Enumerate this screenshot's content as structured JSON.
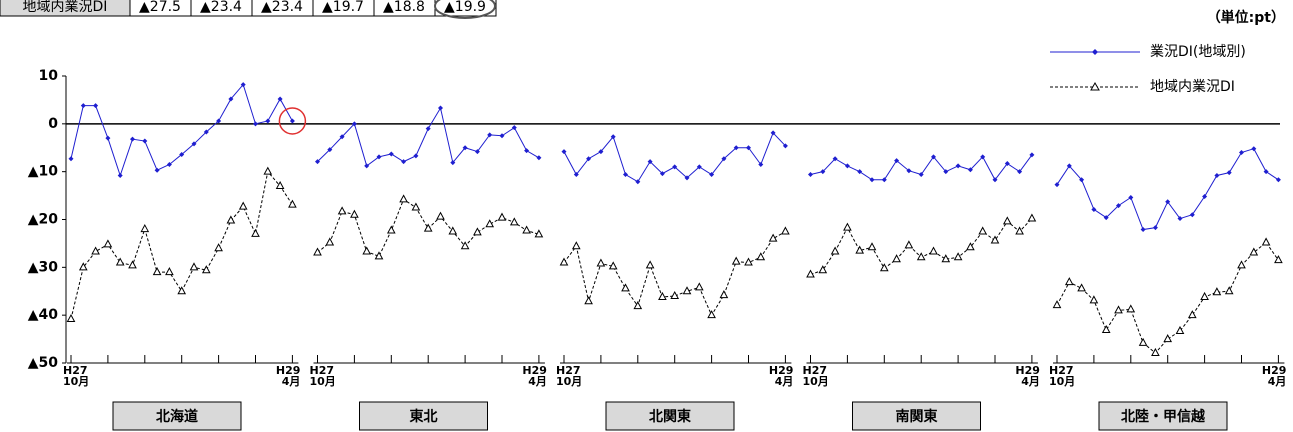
{
  "top_table": {
    "header": "地域内業況DI",
    "values": [
      "▲27.5",
      "▲23.4",
      "▲23.4",
      "▲19.7",
      "▲18.8",
      "▲19.9"
    ]
  },
  "chart_data": {
    "type": "line",
    "unit": "（単位:pt）",
    "ylim": [
      -50,
      10
    ],
    "yticks": [
      10,
      0,
      {
        "value": -10,
        "label": "▲10"
      },
      {
        "value": -20,
        "label": "▲20"
      },
      {
        "value": -30,
        "label": "▲30"
      },
      {
        "value": -40,
        "label": "▲40"
      },
      {
        "value": -50,
        "label": "▲50"
      }
    ],
    "categories": [
      "H27\n10月",
      null,
      null,
      null,
      null,
      null,
      null,
      null,
      null,
      null,
      null,
      null,
      null,
      null,
      null,
      null,
      null,
      null,
      "H29\n4月"
    ],
    "series": [
      {
        "name": "業況DI(地域別)",
        "color": "#1f1fd0"
      },
      {
        "name": "地域内業況DI",
        "color": "#000000"
      }
    ],
    "panels": [
      {
        "label": "北海道",
        "values": [
          [
            -7.3,
            3.8,
            3.8,
            -3,
            -10.8,
            -3.2,
            -3.6,
            -9.7,
            -8.5,
            -6.4,
            -4.2,
            -1.7,
            0.6,
            5.2,
            8.2,
            0,
            0.6,
            5.2,
            0.6
          ],
          [
            -40.8,
            -30,
            -26.7,
            -25.2,
            -29,
            -29.6,
            -22,
            -31,
            -31,
            -35,
            -30,
            -30.6,
            -26,
            -20.2,
            -17.3,
            -23,
            -10,
            -13,
            -16.9
          ]
        ]
      },
      {
        "label": "東北",
        "values": [
          [
            -7.9,
            -5.4,
            -2.7,
            0,
            -8.8,
            -6.9,
            -6.3,
            -7.9,
            -6.7,
            -1,
            3.3,
            -8.1,
            -5,
            -5.8,
            -2.3,
            -2.5,
            -0.8,
            -5.6,
            -7.1
          ],
          [
            -26.9,
            -24.8,
            -18.3,
            -19,
            -26.7,
            -27.7,
            -22.3,
            -15.8,
            -17.5,
            -21.9,
            -19.4,
            -22.5,
            -25.6,
            -22.7,
            -21,
            -19.6,
            -20.6,
            -22.3,
            -23.1
          ]
        ]
      },
      {
        "label": "北関東",
        "values": [
          [
            -5.8,
            -10.6,
            -7.3,
            -5.8,
            -2.7,
            -10.6,
            -12.1,
            -7.9,
            -10.4,
            -9,
            -11.3,
            -9,
            -10.6,
            -7.3,
            -5,
            -5,
            -8.5,
            -1.9,
            -4.6
          ],
          [
            -29,
            -25.6,
            -37.1,
            -29.2,
            -29.8,
            -34.4,
            -38.1,
            -29.6,
            -36.2,
            -36,
            -35,
            -34.2,
            -40,
            -35.8,
            -28.8,
            -29,
            -27.9,
            -24,
            -22.5
          ]
        ]
      },
      {
        "label": "南関東",
        "values": [
          [
            -10.6,
            -10,
            -7.3,
            -8.8,
            -10,
            -11.7,
            -11.7,
            -7.7,
            -9.8,
            -10.6,
            -6.9,
            -10,
            -8.8,
            -9.6,
            -6.9,
            -11.7,
            -8.3,
            -10,
            -6.5
          ],
          [
            -31.5,
            -30.6,
            -26.7,
            -21.7,
            -26.5,
            -25.8,
            -30.2,
            -28.3,
            -25.4,
            -27.9,
            -26.7,
            -28.3,
            -27.9,
            -25.8,
            -22.5,
            -24.4,
            -20.4,
            -22.5,
            -19.8
          ]
        ]
      },
      {
        "label": "北陸・甲信越",
        "values": [
          [
            -12.7,
            -8.8,
            -11.7,
            -17.9,
            -19.6,
            -17.1,
            -15.4,
            -22.1,
            -21.7,
            -16.3,
            -19.8,
            -19,
            -15.2,
            -10.8,
            -10.2,
            -6,
            -5.2,
            -10,
            -11.7
          ],
          [
            -37.9,
            -33.1,
            -34.4,
            -36.9,
            -43.1,
            -39,
            -38.8,
            -45.8,
            -47.9,
            -45,
            -43.3,
            -40,
            -36.2,
            -35.2,
            -35,
            -29.6,
            -26.9,
            -24.8,
            -28.5
          ]
        ]
      }
    ]
  }
}
